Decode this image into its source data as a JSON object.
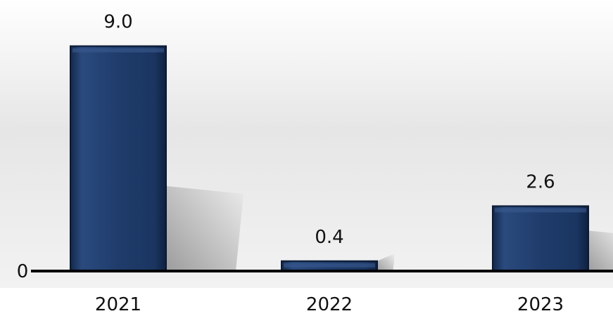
{
  "chart_data": {
    "type": "bar",
    "title": "",
    "xlabel": "",
    "ylabel": "",
    "categories": [
      "2021",
      "2022",
      "2023"
    ],
    "values": [
      9.0,
      0.4,
      2.6
    ],
    "value_labels": [
      "9.0",
      "0.4",
      "2.6"
    ],
    "y_tick_labels": [
      "0"
    ],
    "ylim": [
      0,
      10
    ],
    "grid": false,
    "legend": "none",
    "colors": {
      "bar": "#1f3c6b",
      "bar_edge": "#0b1a33",
      "bar_highlight": "#3a5a8f",
      "axis": "#000000",
      "panel_top": "#ffffff",
      "panel_mid": "#e7e7e7"
    }
  }
}
